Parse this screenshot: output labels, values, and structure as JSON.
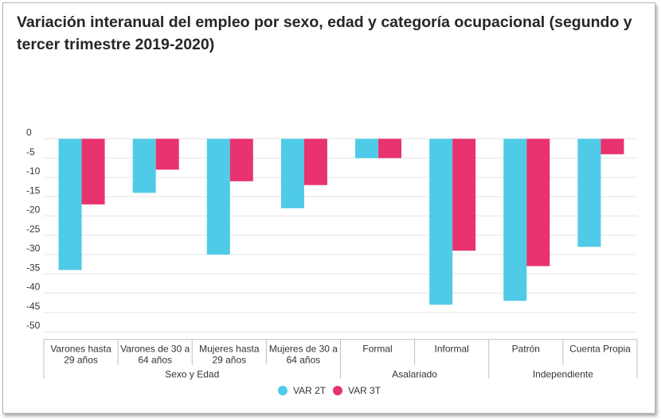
{
  "title_line1": "Variación interanual del empleo por sexo, edad y categoría ocupacional (segundo y",
  "title_line2": "tercer trimestre 2019-2020)",
  "colors": {
    "var2t": "#4fcbe8",
    "var3t": "#e8336e",
    "grid": "#e6e6e6",
    "axis": "#bfbfbf"
  },
  "chart_data": {
    "type": "bar",
    "title": "Variación interanual del empleo por sexo, edad y categoría ocupacional (segundo y tercer trimestre 2019-2020)",
    "categories": [
      [
        "Varones hasta",
        "29 años"
      ],
      [
        "Varones de 30 a",
        "64 años"
      ],
      [
        "Mujeres hasta",
        "29 años"
      ],
      [
        "Mujeres de 30 a",
        "64 años"
      ],
      [
        "Formal"
      ],
      [
        "Informal"
      ],
      [
        "Patrón"
      ],
      [
        "Cuenta Propia"
      ]
    ],
    "groups": [
      {
        "label": "Sexo y Edad",
        "start": 0,
        "end": 3
      },
      {
        "label": "Asalariado",
        "start": 4,
        "end": 5
      },
      {
        "label": "Independiente",
        "start": 6,
        "end": 7
      }
    ],
    "series": [
      {
        "name": "VAR 2T",
        "values": [
          -34,
          -14,
          -30,
          -18,
          -5,
          -43,
          -42,
          -28
        ]
      },
      {
        "name": "VAR 3T",
        "values": [
          -17,
          -8,
          -11,
          -12,
          -5,
          -29,
          -33,
          -4
        ]
      }
    ],
    "yticks": [
      0,
      -5,
      -10,
      -15,
      -20,
      -25,
      -30,
      -35,
      -40,
      -45,
      -50
    ],
    "ylim": [
      -52,
      0
    ],
    "xlabel": "",
    "ylabel": "",
    "legend": "bottom-center"
  }
}
